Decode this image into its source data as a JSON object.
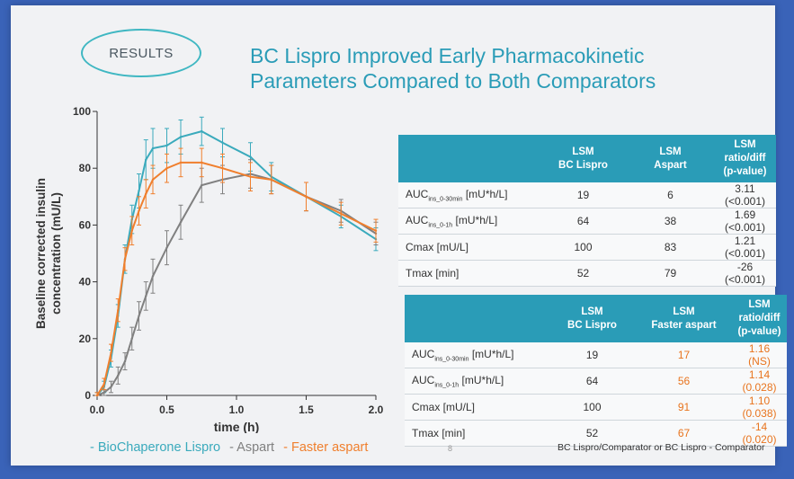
{
  "badge": "RESULTS",
  "title_lines": [
    "BC Lispro Improved Early Pharmacokinetic",
    "Parameters Compared to Both Comparators"
  ],
  "legend": {
    "items": [
      {
        "text": "- BioChaperone Lispro",
        "color": "#3aaabc"
      },
      {
        "text": "- Aspart",
        "color": "#808080"
      },
      {
        "text": "- Faster aspart",
        "color": "#f07f2d"
      }
    ]
  },
  "table1": {
    "headers": [
      "LSM\nBC Lispro",
      "LSM\nAspart",
      "LSM ratio/diff\n(p-value)"
    ],
    "rows": [
      {
        "label": "AUC",
        "sub": "ins_0-30min",
        "unit": "[mU*h/L]",
        "c1": "19",
        "c2": "6",
        "c3": "3.11 (<0.001)"
      },
      {
        "label": "AUC",
        "sub": "ins_0-1h",
        "unit": "[mU*h/L]",
        "c1": "64",
        "c2": "38",
        "c3": "1.69 (<0.001)"
      },
      {
        "label": "Cmax [mU/L]",
        "sub": "",
        "unit": "",
        "c1": "100",
        "c2": "83",
        "c3": "1.21 (<0.001)"
      },
      {
        "label": "Tmax [min]",
        "sub": "",
        "unit": "",
        "c1": "52",
        "c2": "79",
        "c3": "-26 (<0.001)"
      }
    ]
  },
  "table2": {
    "headers": [
      "LSM\nBC Lispro",
      "LSM\nFaster aspart",
      "LSM ratio/diff\n(p-value)"
    ],
    "rows": [
      {
        "label": "AUC",
        "sub": "ins_0-30min",
        "unit": "[mU*h/L]",
        "c1": "19",
        "c2": "17",
        "c3": "1.16 (NS)"
      },
      {
        "label": "AUC",
        "sub": "ins_0-1h",
        "unit": "[mU*h/L]",
        "c1": "64",
        "c2": "56",
        "c3": "1.14 (0.028)"
      },
      {
        "label": "Cmax [mU/L]",
        "sub": "",
        "unit": "",
        "c1": "100",
        "c2": "91",
        "c3": "1.10 (0.038)"
      },
      {
        "label": "Tmax [min]",
        "sub": "",
        "unit": "",
        "c1": "52",
        "c2": "67",
        "c3": "-14 (0.020)"
      }
    ]
  },
  "page_number": "8",
  "footnote": "BC Lispro/Comparator  or  BC Lispro - Comparator",
  "chart_data": {
    "type": "line",
    "xlabel": "time (h)",
    "ylabel": "Baseline corrected insulin\nconcentration (mU/L)",
    "xlim": [
      0,
      2.0
    ],
    "ylim": [
      0,
      100
    ],
    "xticks": [
      "0.0",
      "0.5",
      "1.0",
      "1.5",
      "2.0"
    ],
    "yticks": [
      "0",
      "20",
      "40",
      "60",
      "80",
      "100"
    ],
    "x": [
      0,
      0.05,
      0.1,
      0.15,
      0.2,
      0.25,
      0.3,
      0.35,
      0.4,
      0.5,
      0.6,
      0.75,
      0.9,
      1.1,
      1.25,
      1.5,
      1.75,
      2.0
    ],
    "series": [
      {
        "name": "BioChaperone Lispro",
        "color": "#3aaabc",
        "values": [
          0,
          3,
          13,
          28,
          48,
          62,
          72,
          83,
          87,
          88,
          91,
          93,
          89,
          84,
          77,
          70,
          63,
          55
        ],
        "errors": [
          1,
          2,
          3,
          4,
          5,
          5,
          6,
          7,
          7,
          6,
          6,
          5,
          5,
          5,
          5,
          5,
          4,
          4
        ]
      },
      {
        "name": "Aspart",
        "color": "#808080",
        "values": [
          0,
          1,
          3,
          7,
          12,
          20,
          28,
          35,
          42,
          52,
          61,
          74,
          76,
          78,
          76,
          70,
          65,
          57
        ],
        "errors": [
          1,
          1,
          2,
          3,
          3,
          4,
          5,
          5,
          6,
          6,
          6,
          6,
          5,
          5,
          5,
          5,
          4,
          4
        ]
      },
      {
        "name": "Faster aspart",
        "color": "#f07f2d",
        "values": [
          0,
          4,
          15,
          30,
          48,
          58,
          65,
          71,
          76,
          80,
          82,
          82,
          80,
          77,
          76,
          70,
          64,
          58
        ],
        "errors": [
          1,
          2,
          3,
          4,
          4,
          5,
          5,
          5,
          5,
          5,
          5,
          5,
          5,
          5,
          5,
          5,
          4,
          4
        ]
      }
    ]
  }
}
